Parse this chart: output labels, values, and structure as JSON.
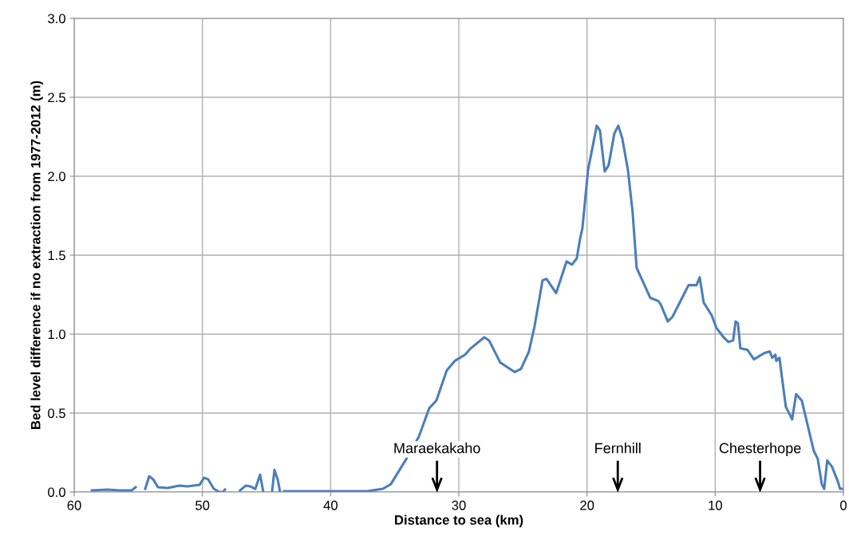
{
  "chart_data": {
    "type": "line",
    "xlabel": "Distance to sea (km)",
    "ylabel": "Bed level difference if no extraction from 1977-2012 (m)",
    "xlim": [
      60,
      0
    ],
    "xticks": [
      60,
      50,
      40,
      30,
      20,
      10,
      0
    ],
    "ylim": [
      0,
      3.0
    ],
    "yticks": [
      {
        "value": 0,
        "label": "0.0"
      },
      {
        "value": 0.5,
        "label": "0.5"
      },
      {
        "value": 1.0,
        "label": "1.0"
      },
      {
        "value": 1.5,
        "label": "1.5"
      },
      {
        "value": 2.0,
        "label": "2.0"
      },
      {
        "value": 2.5,
        "label": "2.5"
      },
      {
        "value": 3.0,
        "label": "3.0"
      }
    ],
    "grid": true,
    "marker": "none",
    "line_style": "solid",
    "ref_lines": [
      {
        "axis": "x",
        "value": 31.7,
        "label": "Maraekakaho"
      },
      {
        "axis": "x",
        "value": 17.6,
        "label": "Fernhill"
      },
      {
        "axis": "x",
        "value": 6.5,
        "label": "Chesterhope"
      }
    ],
    "series": [
      {
        "color": "#4a7ebb",
        "x": [
          58.63,
          57.39,
          56.45,
          55.52,
          55.21,
          55.0,
          54.46,
          54.15,
          53.84,
          53.47,
          52.72,
          51.79,
          51.16,
          50.23,
          49.86,
          49.55,
          49.11,
          48.67,
          48.4,
          48.24,
          48.0,
          47.06,
          46.62,
          46.25,
          45.87,
          45.5,
          45.25,
          44.9,
          44.57,
          44.38,
          44.13,
          43.94,
          43.8,
          43.63,
          40.27,
          37.16,
          35.92,
          35.3,
          34.24,
          33.12,
          32.31,
          31.75,
          30.94,
          30.32,
          29.51,
          29.07,
          28.01,
          27.64,
          26.77,
          26.4,
          25.65,
          25.15,
          24.53,
          24.09,
          23.47,
          23.16,
          22.41,
          22.04,
          21.6,
          21.17,
          20.8,
          20.55,
          20.36,
          19.92,
          19.24,
          18.99,
          18.62,
          18.31,
          17.87,
          17.56,
          17.25,
          16.81,
          16.44,
          16.13,
          15.57,
          15.07,
          14.45,
          14.26,
          13.7,
          13.33,
          12.58,
          12.08,
          11.77,
          11.46,
          11.21,
          10.9,
          10.28,
          9.91,
          9.35,
          8.97,
          8.6,
          8.41,
          8.23,
          8.04,
          7.48,
          6.98,
          6.17,
          5.74,
          5.55,
          5.3,
          5.24,
          4.99,
          4.8,
          4.49,
          4.0,
          3.69,
          3.25,
          2.81,
          2.31,
          2.0,
          1.69,
          1.5,
          1.26,
          0.89,
          0.45,
          0.26,
          0.0
        ],
        "values": [
          0.01,
          0.015,
          0.01,
          0.01,
          0.03,
          null,
          0.02,
          0.1,
          0.08,
          0.03,
          0.025,
          0.04,
          0.035,
          0.045,
          0.09,
          0.08,
          0.02,
          0.0,
          0.0,
          0.015,
          null,
          0.01,
          0.04,
          0.035,
          0.02,
          0.11,
          0.0,
          null,
          0.0,
          0.14,
          0.08,
          0.0,
          null,
          0.005,
          0.005,
          0.005,
          0.02,
          0.05,
          0.19,
          0.35,
          0.53,
          0.58,
          0.77,
          0.83,
          0.87,
          0.91,
          0.98,
          0.96,
          0.82,
          0.8,
          0.76,
          0.78,
          0.89,
          1.05,
          1.34,
          1.35,
          1.26,
          1.35,
          1.46,
          1.44,
          1.48,
          1.6,
          1.67,
          2.04,
          2.32,
          2.29,
          2.03,
          2.07,
          2.27,
          2.32,
          2.24,
          2.04,
          1.77,
          1.42,
          1.32,
          1.23,
          1.21,
          1.19,
          1.08,
          1.11,
          1.23,
          1.31,
          1.31,
          1.31,
          1.36,
          1.2,
          1.12,
          1.04,
          0.98,
          0.95,
          0.96,
          1.08,
          1.07,
          0.91,
          0.9,
          0.84,
          0.88,
          0.89,
          0.85,
          0.87,
          0.83,
          0.85,
          0.73,
          0.54,
          0.46,
          0.62,
          0.58,
          0.43,
          0.26,
          0.21,
          0.05,
          0.02,
          0.2,
          0.16,
          0.07,
          0.02,
          0.02
        ]
      }
    ]
  }
}
